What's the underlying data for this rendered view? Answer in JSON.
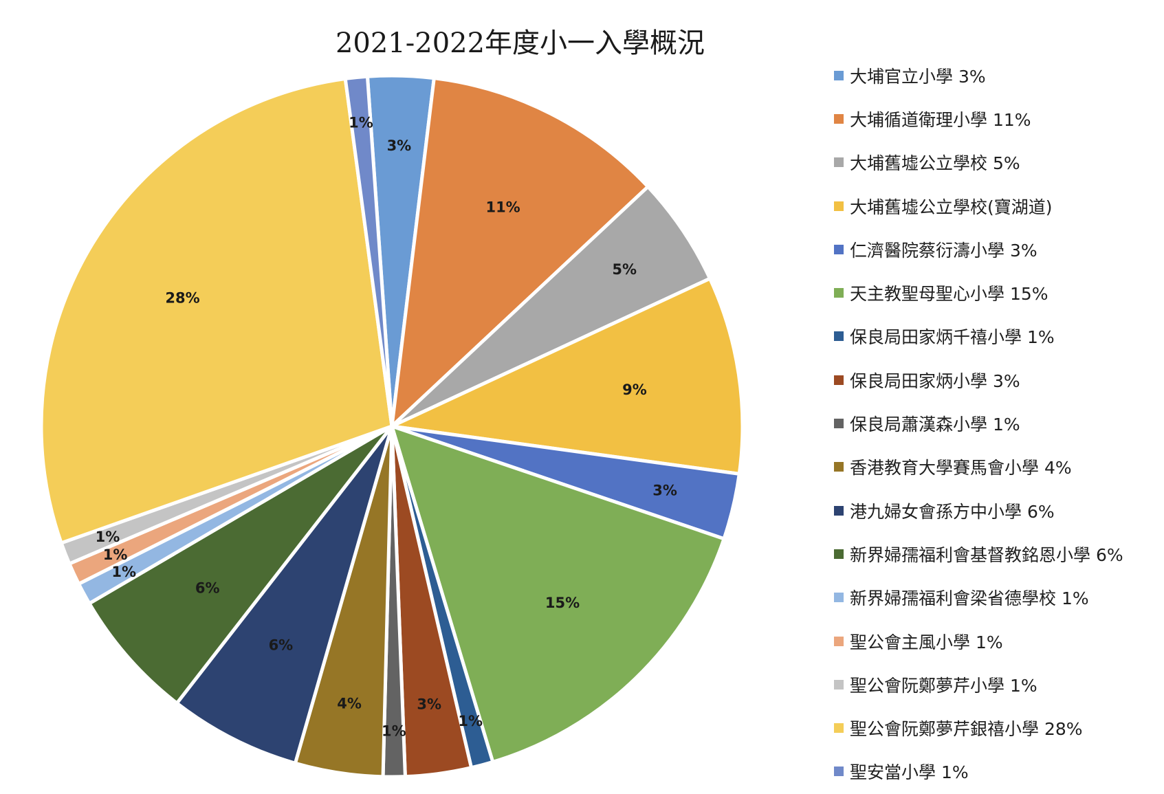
{
  "chart_data": {
    "type": "pie",
    "title": "2021-2022年度小一入學概況",
    "start_angle_deg": -4,
    "slices": [
      {
        "label": "大埔官立小學",
        "value": 3,
        "display": "3%",
        "color": "#6a9bd4"
      },
      {
        "label": "大埔循道衛理小學",
        "value": 11,
        "display": "11%",
        "color": "#e08544"
      },
      {
        "label": "大埔舊墟公立學校",
        "value": 5,
        "display": "5%",
        "color": "#a8a8a8"
      },
      {
        "label": "大埔舊墟公立學校(寶湖道)",
        "value": 9,
        "display": "9%",
        "color": "#f2c043"
      },
      {
        "label": "仁濟醫院蔡衍濤小學",
        "value": 3,
        "display": "3%",
        "color": "#5273c4"
      },
      {
        "label": "天主教聖母聖心小學",
        "value": 15,
        "display": "15%",
        "color": "#7fae56"
      },
      {
        "label": "保良局田家炳千禧小學",
        "value": 1,
        "display": "1%",
        "color": "#2d5d93"
      },
      {
        "label": "保良局田家炳小學",
        "value": 3,
        "display": "3%",
        "color": "#9c4a22"
      },
      {
        "label": "保良局蕭漢森小學",
        "value": 1,
        "display": "1%",
        "color": "#636363"
      },
      {
        "label": "香港教育大學賽馬會小學",
        "value": 4,
        "display": "4%",
        "color": "#967626"
      },
      {
        "label": "港九婦女會孫方中小學",
        "value": 6,
        "display": "6%",
        "color": "#2d4371"
      },
      {
        "label": "新界婦孺福利會基督教銘恩小學",
        "value": 6,
        "display": "6%",
        "color": "#4b6b33"
      },
      {
        "label": "新界婦孺福利會梁省德學校",
        "value": 1,
        "display": "1%",
        "color": "#93b7e2"
      },
      {
        "label": "聖公會主風小學",
        "value": 1,
        "display": "1%",
        "color": "#eba67d"
      },
      {
        "label": "聖公會阮鄭夢芹小學",
        "value": 1,
        "display": "1%",
        "color": "#c4c4c4"
      },
      {
        "label": "聖公會阮鄭夢芹銀禧小學",
        "value": 28,
        "display": "28%",
        "color": "#f4cd58"
      },
      {
        "label": "聖安當小學",
        "value": 1,
        "display": "1%",
        "color": "#7089c9"
      }
    ]
  },
  "legend": {
    "items": [
      {
        "label": "大埔官立小學 3%",
        "color": "#6a9bd4"
      },
      {
        "label": "大埔循道衛理小學 11%",
        "color": "#e08544"
      },
      {
        "label": "大埔舊墟公立學校 5%",
        "color": "#a8a8a8"
      },
      {
        "label": "大埔舊墟公立學校(寶湖道)",
        "color": "#f2c043"
      },
      {
        "label": "仁濟醫院蔡衍濤小學 3%",
        "color": "#5273c4"
      },
      {
        "label": "天主教聖母聖心小學 15%",
        "color": "#7fae56"
      },
      {
        "label": "保良局田家炳千禧小學 1%",
        "color": "#2d5d93"
      },
      {
        "label": "保良局田家炳小學 3%",
        "color": "#9c4a22"
      },
      {
        "label": "保良局蕭漢森小學 1%",
        "color": "#636363"
      },
      {
        "label": "香港教育大學賽馬會小學 4%",
        "color": "#967626"
      },
      {
        "label": "港九婦女會孫方中小學 6%",
        "color": "#2d4371"
      },
      {
        "label": "新界婦孺福利會基督教銘恩小學 6%",
        "color": "#4b6b33"
      },
      {
        "label": "新界婦孺福利會梁省德學校 1%",
        "color": "#93b7e2"
      },
      {
        "label": "聖公會主風小學 1%",
        "color": "#eba67d"
      },
      {
        "label": "聖公會阮鄭夢芹小學 1%",
        "color": "#c4c4c4"
      },
      {
        "label": "聖公會阮鄭夢芹銀禧小學 28%",
        "color": "#f4cd58"
      },
      {
        "label": "聖安當小學 1%",
        "color": "#7089c9"
      }
    ]
  }
}
